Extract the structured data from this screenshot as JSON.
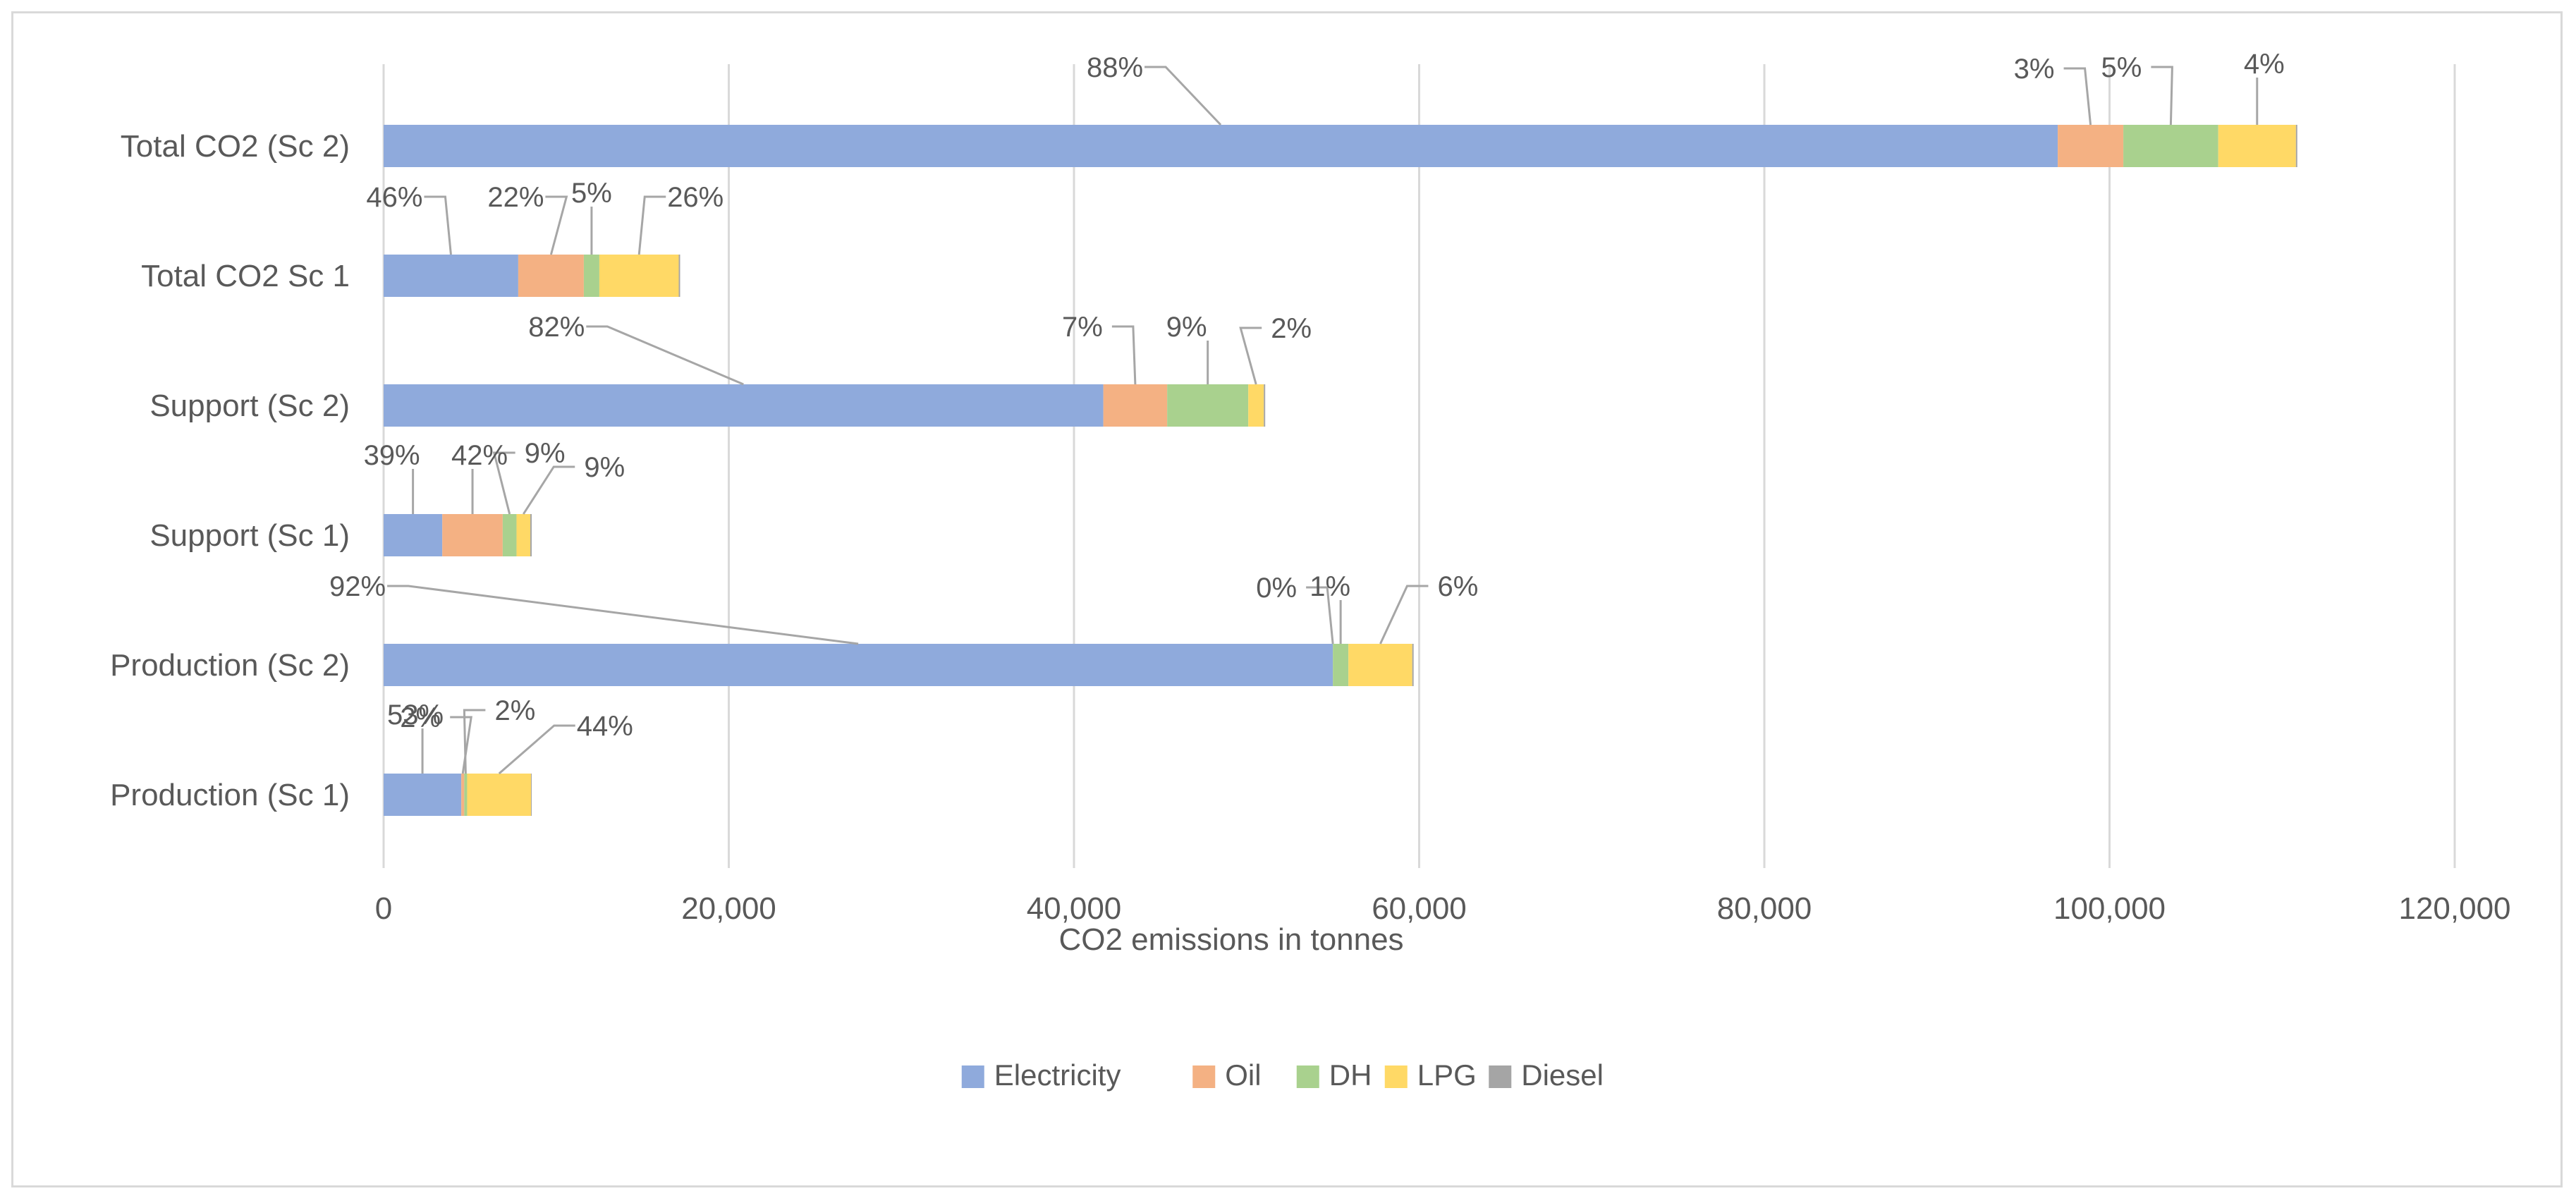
{
  "chart_data": {
    "type": "bar",
    "orientation": "horizontal",
    "stacked": true,
    "title": "",
    "xlabel": "CO2 emissions in tonnes",
    "ylabel": "",
    "xlim": [
      0,
      120000
    ],
    "x_ticks": [
      0,
      20000,
      40000,
      60000,
      80000,
      100000,
      120000
    ],
    "x_tick_labels": [
      "0",
      "20,000",
      "40,000",
      "60,000",
      "80,000",
      "100,000",
      "120,000"
    ],
    "grid": "vertical",
    "legend_position": "bottom",
    "categories": [
      "Total CO2 (Sc 2)",
      "Total CO2 Sc 1",
      "Support (Sc 2)",
      "Support (Sc 1)",
      "Production (Sc 2)",
      "Production (Sc 1)"
    ],
    "series": [
      {
        "name": "Electricity",
        "color": "#8faadc",
        "values": [
          97000,
          7800,
          41700,
          3400,
          55000,
          4500
        ],
        "labels": [
          "88%",
          "46%",
          "82%",
          "39%",
          "92%",
          "53%"
        ]
      },
      {
        "name": "Oil",
        "color": "#f4b183",
        "values": [
          3800,
          3800,
          3700,
          3500,
          0,
          170
        ],
        "labels": [
          "3%",
          "22%",
          "7%",
          "42%",
          "0%",
          "2%"
        ]
      },
      {
        "name": "DH",
        "color": "#a9d18e",
        "values": [
          5500,
          900,
          4700,
          800,
          900,
          170
        ],
        "labels": [
          "5%",
          "5%",
          "9%",
          "9%",
          "1%",
          "2%"
        ]
      },
      {
        "name": "LPG",
        "color": "#ffd966",
        "values": [
          4500,
          4600,
          900,
          800,
          3700,
          3700
        ],
        "labels": [
          "4%",
          "26%",
          "2%",
          "9%",
          "6%",
          "44%"
        ]
      },
      {
        "name": "Diesel",
        "color": "#a5a5a5",
        "values": [
          80,
          80,
          80,
          80,
          80,
          40
        ],
        "labels": [
          "",
          "",
          "",
          "",
          "",
          ""
        ]
      }
    ]
  }
}
